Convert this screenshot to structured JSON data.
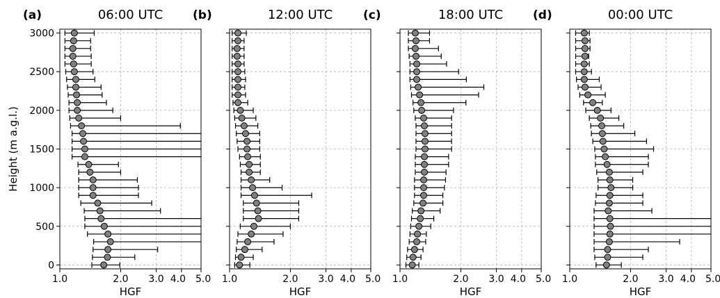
{
  "chart_data": [
    {
      "type": "scatter",
      "letter": "(a)",
      "title": "06:00 UTC",
      "xlabel": "HGF",
      "ylabel": "Height (m a.g.l.)",
      "x_scale": "log",
      "xlim": [
        1.0,
        5.0
      ],
      "ylim": [
        -50,
        3050
      ],
      "xticks": [
        "1.0",
        "2.0",
        "3.0",
        "4.0",
        "5.0"
      ],
      "yticks": [
        "0",
        "500",
        "1000",
        "1500",
        "2000",
        "2500",
        "3000"
      ],
      "grid": true,
      "marker_color": "#808080",
      "points": [
        {
          "height": 0,
          "median": 1.65,
          "low": 1.44,
          "high": 1.98
        },
        {
          "height": 100,
          "median": 1.72,
          "low": 1.45,
          "high": 2.35
        },
        {
          "height": 200,
          "median": 1.73,
          "low": 1.46,
          "high": 3.05
        },
        {
          "height": 300,
          "median": 1.78,
          "low": 1.47,
          "high": 5.0
        },
        {
          "height": 400,
          "median": 1.73,
          "low": 1.37,
          "high": 5.0
        },
        {
          "height": 500,
          "median": 1.66,
          "low": 1.33,
          "high": 5.0
        },
        {
          "height": 600,
          "median": 1.6,
          "low": 1.33,
          "high": 5.0
        },
        {
          "height": 700,
          "median": 1.58,
          "low": 1.32,
          "high": 3.15
        },
        {
          "height": 800,
          "median": 1.54,
          "low": 1.27,
          "high": 2.85
        },
        {
          "height": 900,
          "median": 1.46,
          "low": 1.24,
          "high": 2.45
        },
        {
          "height": 1000,
          "median": 1.46,
          "low": 1.24,
          "high": 2.45
        },
        {
          "height": 1100,
          "median": 1.46,
          "low": 1.24,
          "high": 2.42
        },
        {
          "height": 1200,
          "median": 1.41,
          "low": 1.24,
          "high": 2.0
        },
        {
          "height": 1300,
          "median": 1.39,
          "low": 1.23,
          "high": 1.95
        },
        {
          "height": 1400,
          "median": 1.33,
          "low": 1.15,
          "high": 5.0
        },
        {
          "height": 1500,
          "median": 1.33,
          "low": 1.15,
          "high": 5.0
        },
        {
          "height": 1600,
          "median": 1.31,
          "low": 1.15,
          "high": 5.0
        },
        {
          "height": 1700,
          "median": 1.3,
          "low": 1.15,
          "high": 5.0
        },
        {
          "height": 1800,
          "median": 1.28,
          "low": 1.13,
          "high": 3.95
        },
        {
          "height": 1900,
          "median": 1.24,
          "low": 1.12,
          "high": 2.0
        },
        {
          "height": 2000,
          "median": 1.22,
          "low": 1.11,
          "high": 1.83
        },
        {
          "height": 2100,
          "median": 1.22,
          "low": 1.11,
          "high": 1.7
        },
        {
          "height": 2200,
          "median": 1.21,
          "low": 1.1,
          "high": 1.62
        },
        {
          "height": 2300,
          "median": 1.2,
          "low": 1.09,
          "high": 1.6
        },
        {
          "height": 2400,
          "median": 1.2,
          "low": 1.08,
          "high": 1.49
        },
        {
          "height": 2500,
          "median": 1.18,
          "low": 1.07,
          "high": 1.46
        },
        {
          "height": 2600,
          "median": 1.17,
          "low": 1.06,
          "high": 1.43
        },
        {
          "height": 2700,
          "median": 1.16,
          "low": 1.06,
          "high": 1.43
        },
        {
          "height": 2800,
          "median": 1.16,
          "low": 1.06,
          "high": 1.42
        },
        {
          "height": 2900,
          "median": 1.17,
          "low": 1.06,
          "high": 1.42
        },
        {
          "height": 3000,
          "median": 1.18,
          "low": 1.06,
          "high": 1.48
        }
      ]
    },
    {
      "type": "scatter",
      "letter": "(b)",
      "title": "12:00 UTC",
      "xlabel": "HGF",
      "ylabel": "",
      "x_scale": "log",
      "xlim": [
        1.0,
        5.0
      ],
      "ylim": [
        -50,
        3050
      ],
      "xticks": [
        "1.0",
        "2.0",
        "3.0",
        "4.0",
        "5.0"
      ],
      "yticks": [],
      "grid": true,
      "marker_color": "#808080",
      "points": [
        {
          "height": 0,
          "median": 1.12,
          "low": 1.06,
          "high": 1.26
        },
        {
          "height": 100,
          "median": 1.14,
          "low": 1.07,
          "high": 1.31
        },
        {
          "height": 200,
          "median": 1.19,
          "low": 1.08,
          "high": 1.45
        },
        {
          "height": 300,
          "median": 1.23,
          "low": 1.09,
          "high": 1.66
        },
        {
          "height": 400,
          "median": 1.28,
          "low": 1.1,
          "high": 1.84
        },
        {
          "height": 500,
          "median": 1.32,
          "low": 1.13,
          "high": 2.0
        },
        {
          "height": 600,
          "median": 1.39,
          "low": 1.17,
          "high": 2.2
        },
        {
          "height": 700,
          "median": 1.38,
          "low": 1.17,
          "high": 2.2
        },
        {
          "height": 800,
          "median": 1.36,
          "low": 1.17,
          "high": 2.2
        },
        {
          "height": 900,
          "median": 1.33,
          "low": 1.14,
          "high": 2.55
        },
        {
          "height": 1000,
          "median": 1.3,
          "low": 1.14,
          "high": 1.82
        },
        {
          "height": 1100,
          "median": 1.28,
          "low": 1.14,
          "high": 1.58
        },
        {
          "height": 1200,
          "median": 1.25,
          "low": 1.14,
          "high": 1.42
        },
        {
          "height": 1300,
          "median": 1.25,
          "low": 1.13,
          "high": 1.42
        },
        {
          "height": 1400,
          "median": 1.23,
          "low": 1.12,
          "high": 1.42
        },
        {
          "height": 1500,
          "median": 1.22,
          "low": 1.1,
          "high": 1.41
        },
        {
          "height": 1600,
          "median": 1.22,
          "low": 1.09,
          "high": 1.41
        },
        {
          "height": 1700,
          "median": 1.2,
          "low": 1.08,
          "high": 1.41
        },
        {
          "height": 1800,
          "median": 1.18,
          "low": 1.07,
          "high": 1.38
        },
        {
          "height": 1900,
          "median": 1.15,
          "low": 1.06,
          "high": 1.35
        },
        {
          "height": 2000,
          "median": 1.13,
          "low": 1.05,
          "high": 1.31
        },
        {
          "height": 2100,
          "median": 1.1,
          "low": 1.04,
          "high": 1.23
        },
        {
          "height": 2200,
          "median": 1.1,
          "low": 1.03,
          "high": 1.2
        },
        {
          "height": 2300,
          "median": 1.1,
          "low": 1.03,
          "high": 1.19
        },
        {
          "height": 2400,
          "median": 1.1,
          "low": 1.03,
          "high": 1.2
        },
        {
          "height": 2500,
          "median": 1.1,
          "low": 1.03,
          "high": 1.19
        },
        {
          "height": 2600,
          "median": 1.1,
          "low": 1.03,
          "high": 1.18
        },
        {
          "height": 2700,
          "median": 1.09,
          "low": 1.03,
          "high": 1.18
        },
        {
          "height": 2800,
          "median": 1.09,
          "low": 1.03,
          "high": 1.18
        },
        {
          "height": 2900,
          "median": 1.1,
          "low": 1.03,
          "high": 1.18
        },
        {
          "height": 3000,
          "median": 1.1,
          "low": 1.03,
          "high": 1.21
        }
      ]
    },
    {
      "type": "scatter",
      "letter": "(c)",
      "title": "18:00 UTC",
      "xlabel": "HGF",
      "ylabel": "",
      "x_scale": "log",
      "xlim": [
        1.0,
        5.0
      ],
      "ylim": [
        -50,
        3050
      ],
      "xticks": [
        "1.0",
        "2.0",
        "3.0",
        "4.0",
        "5.0"
      ],
      "yticks": [],
      "grid": true,
      "marker_color": "#808080",
      "points": [
        {
          "height": 0,
          "median": 1.15,
          "low": 1.07,
          "high": 1.24
        },
        {
          "height": 100,
          "median": 1.16,
          "low": 1.08,
          "high": 1.27
        },
        {
          "height": 200,
          "median": 1.18,
          "low": 1.09,
          "high": 1.3
        },
        {
          "height": 300,
          "median": 1.21,
          "low": 1.11,
          "high": 1.34
        },
        {
          "height": 400,
          "median": 1.22,
          "low": 1.12,
          "high": 1.35
        },
        {
          "height": 500,
          "median": 1.24,
          "low": 1.13,
          "high": 1.42
        },
        {
          "height": 600,
          "median": 1.26,
          "low": 1.14,
          "high": 1.47
        },
        {
          "height": 700,
          "median": 1.27,
          "low": 1.15,
          "high": 1.58
        },
        {
          "height": 800,
          "median": 1.3,
          "low": 1.17,
          "high": 1.63
        },
        {
          "height": 900,
          "median": 1.31,
          "low": 1.18,
          "high": 1.63
        },
        {
          "height": 1000,
          "median": 1.31,
          "low": 1.18,
          "high": 1.66
        },
        {
          "height": 1100,
          "median": 1.31,
          "low": 1.18,
          "high": 1.68
        },
        {
          "height": 1200,
          "median": 1.32,
          "low": 1.19,
          "high": 1.69
        },
        {
          "height": 1300,
          "median": 1.32,
          "low": 1.19,
          "high": 1.74
        },
        {
          "height": 1400,
          "median": 1.32,
          "low": 1.19,
          "high": 1.74
        },
        {
          "height": 1500,
          "median": 1.33,
          "low": 1.2,
          "high": 1.8
        },
        {
          "height": 1600,
          "median": 1.33,
          "low": 1.2,
          "high": 1.8
        },
        {
          "height": 1700,
          "median": 1.33,
          "low": 1.2,
          "high": 1.8
        },
        {
          "height": 1800,
          "median": 1.32,
          "low": 1.2,
          "high": 1.8
        },
        {
          "height": 1900,
          "median": 1.31,
          "low": 1.19,
          "high": 1.8
        },
        {
          "height": 2000,
          "median": 1.28,
          "low": 1.17,
          "high": 1.84
        },
        {
          "height": 2100,
          "median": 1.27,
          "low": 1.16,
          "high": 2.12
        },
        {
          "height": 2200,
          "median": 1.25,
          "low": 1.14,
          "high": 2.45
        },
        {
          "height": 2300,
          "median": 1.23,
          "low": 1.13,
          "high": 2.6
        },
        {
          "height": 2400,
          "median": 1.21,
          "low": 1.12,
          "high": 2.13
        },
        {
          "height": 2500,
          "median": 1.21,
          "low": 1.12,
          "high": 1.95
        },
        {
          "height": 2600,
          "median": 1.21,
          "low": 1.12,
          "high": 1.7
        },
        {
          "height": 2700,
          "median": 1.2,
          "low": 1.11,
          "high": 1.6
        },
        {
          "height": 2800,
          "median": 1.19,
          "low": 1.1,
          "high": 1.55
        },
        {
          "height": 2900,
          "median": 1.2,
          "low": 1.1,
          "high": 1.4
        },
        {
          "height": 3000,
          "median": 1.19,
          "low": 1.1,
          "high": 1.4
        }
      ]
    },
    {
      "type": "scatter",
      "letter": "(d)",
      "title": "00:00 UTC",
      "xlabel": "HGF",
      "ylabel": "",
      "x_scale": "log",
      "xlim": [
        1.0,
        5.0
      ],
      "ylim": [
        -50,
        3050
      ],
      "xticks": [
        "1.0",
        "2.0",
        "3.0",
        "4.0",
        "5.0"
      ],
      "yticks": [],
      "grid": true,
      "marker_color": "#808080",
      "points": [
        {
          "height": 0,
          "median": 1.52,
          "low": 1.35,
          "high": 1.8
        },
        {
          "height": 100,
          "median": 1.54,
          "low": 1.33,
          "high": 2.3
        },
        {
          "height": 200,
          "median": 1.54,
          "low": 1.32,
          "high": 2.45
        },
        {
          "height": 300,
          "median": 1.57,
          "low": 1.32,
          "high": 3.5
        },
        {
          "height": 400,
          "median": 1.58,
          "low": 1.32,
          "high": 5.0
        },
        {
          "height": 500,
          "median": 1.59,
          "low": 1.32,
          "high": 5.0
        },
        {
          "height": 600,
          "median": 1.58,
          "low": 1.32,
          "high": 5.0
        },
        {
          "height": 700,
          "median": 1.55,
          "low": 1.32,
          "high": 2.55
        },
        {
          "height": 800,
          "median": 1.57,
          "low": 1.34,
          "high": 2.3
        },
        {
          "height": 900,
          "median": 1.58,
          "low": 1.35,
          "high": 2.3
        },
        {
          "height": 1000,
          "median": 1.6,
          "low": 1.38,
          "high": 2.05
        },
        {
          "height": 1100,
          "median": 1.58,
          "low": 1.38,
          "high": 2.05
        },
        {
          "height": 1200,
          "median": 1.57,
          "low": 1.36,
          "high": 2.3
        },
        {
          "height": 1300,
          "median": 1.53,
          "low": 1.34,
          "high": 2.45
        },
        {
          "height": 1400,
          "median": 1.5,
          "low": 1.34,
          "high": 2.45
        },
        {
          "height": 1500,
          "median": 1.48,
          "low": 1.33,
          "high": 2.6
        },
        {
          "height": 1600,
          "median": 1.46,
          "low": 1.3,
          "high": 2.4
        },
        {
          "height": 1700,
          "median": 1.45,
          "low": 1.28,
          "high": 2.1
        },
        {
          "height": 1800,
          "median": 1.44,
          "low": 1.27,
          "high": 1.85
        },
        {
          "height": 1900,
          "median": 1.42,
          "low": 1.25,
          "high": 1.75
        },
        {
          "height": 2000,
          "median": 1.37,
          "low": 1.2,
          "high": 1.6
        },
        {
          "height": 2100,
          "median": 1.3,
          "low": 1.17,
          "high": 1.45
        },
        {
          "height": 2200,
          "median": 1.23,
          "low": 1.12,
          "high": 1.5
        },
        {
          "height": 2300,
          "median": 1.19,
          "low": 1.1,
          "high": 1.43
        },
        {
          "height": 2400,
          "median": 1.18,
          "low": 1.08,
          "high": 1.4
        },
        {
          "height": 2500,
          "median": 1.18,
          "low": 1.07,
          "high": 1.28
        },
        {
          "height": 2600,
          "median": 1.18,
          "low": 1.07,
          "high": 1.25
        },
        {
          "height": 2700,
          "median": 1.19,
          "low": 1.07,
          "high": 1.24
        },
        {
          "height": 2800,
          "median": 1.19,
          "low": 1.07,
          "high": 1.26
        },
        {
          "height": 2900,
          "median": 1.19,
          "low": 1.07,
          "high": 1.26
        },
        {
          "height": 3000,
          "median": 1.18,
          "low": 1.07,
          "high": 1.25
        }
      ]
    }
  ]
}
